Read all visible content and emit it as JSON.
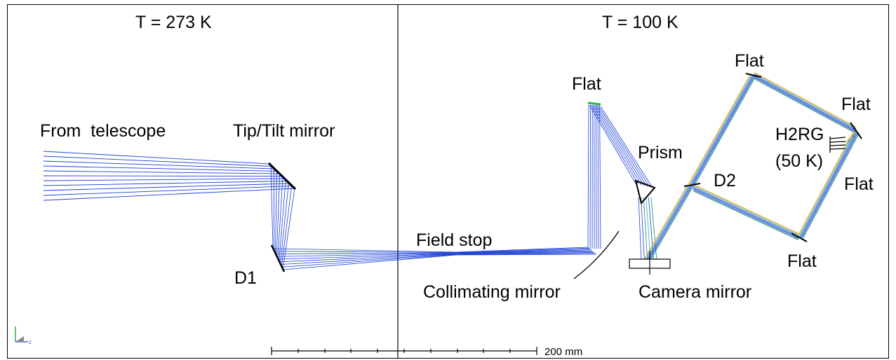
{
  "labels": {
    "temp_warm": "T = 273 K",
    "temp_cold": "T = 100 K",
    "from_telescope": "From  telescope",
    "tip_tilt": "Tip/Tilt mirror",
    "d1": "D1",
    "field_stop": "Field stop",
    "collimating": "Collimating mirror",
    "flat_top_left": "Flat",
    "prism": "Prism",
    "d2": "D2",
    "camera_mirror": "Camera mirror",
    "flat_top": "Flat",
    "flat_right_upper": "Flat",
    "h2rg_line1": "H2RG",
    "h2rg_line2": "(50 K)",
    "flat_right_lower": "Flat",
    "flat_bottom": "Flat"
  },
  "scale_bar": {
    "label": "200 mm"
  },
  "axis_indicator": {
    "label": "z"
  },
  "colors": {
    "ray_blue": "#1a3fd6",
    "ray_orange": "#e8901a",
    "ray_cyan": "#2ab0b0",
    "ray_teal": "#1c8a7a",
    "mirror": "#000000"
  }
}
